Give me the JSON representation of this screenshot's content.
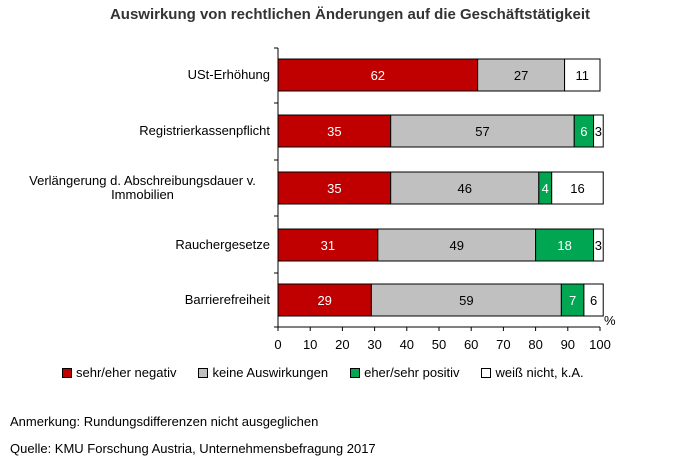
{
  "chart_data": {
    "type": "bar",
    "orientation": "horizontal",
    "stacked": true,
    "title": "Auswirkung von rechtlichen Änderungen auf die Geschäftstätigkeit",
    "categories": [
      "USt-Erhöhung",
      "Registrierkassenpflicht",
      "Verlängerung d. Abschreibungsdauer v. Immobilien",
      "Rauchergesetze",
      "Barrierefreiheit"
    ],
    "series": [
      {
        "name": "sehr/eher negativ",
        "color": "#c00000",
        "label_color": "#ffffff",
        "values": [
          62,
          35,
          35,
          31,
          29
        ]
      },
      {
        "name": "keine Auswirkungen",
        "color": "#c0c0c0",
        "label_color": "#000000",
        "values": [
          27,
          57,
          46,
          49,
          59
        ]
      },
      {
        "name": "eher/sehr positiv",
        "color": "#00a651",
        "label_color": "#ffffff",
        "values": [
          0,
          6,
          4,
          18,
          7
        ]
      },
      {
        "name": "weiß nicht, k.A.",
        "color": "#ffffff",
        "label_color": "#000000",
        "values": [
          11,
          3,
          16,
          3,
          6
        ]
      }
    ],
    "xlim": [
      0,
      100
    ],
    "xticks": [
      "0",
      "10",
      "20",
      "30",
      "40",
      "50",
      "60",
      "70",
      "80",
      "90",
      "100"
    ],
    "xunit": "%",
    "grid": false,
    "legend_position": "bottom"
  },
  "notes": {
    "remark": "Anmerkung: Rundungsdifferenzen nicht ausgeglichen",
    "source": "Quelle: KMU Forschung Austria, Unternehmensbefragung 2017"
  }
}
